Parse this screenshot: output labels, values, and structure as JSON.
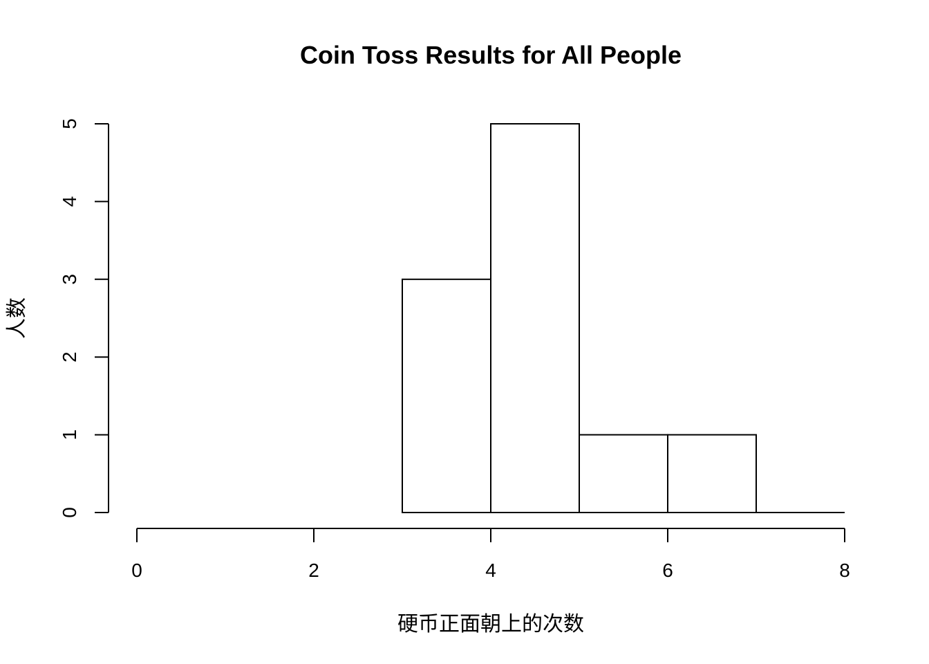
{
  "chart_data": {
    "type": "bar",
    "title": "Coin Toss Results for All People",
    "xlabel": "硬币正面朝上的次数",
    "ylabel": "人数",
    "bins": [
      [
        3,
        4
      ],
      [
        4,
        5
      ],
      [
        5,
        6
      ],
      [
        6,
        7
      ],
      [
        7,
        8
      ]
    ],
    "values": [
      3,
      5,
      1,
      1,
      0
    ],
    "xlim": [
      0,
      8
    ],
    "ylim": [
      0,
      5
    ],
    "xticks": [
      "0",
      "2",
      "4",
      "6",
      "8"
    ],
    "yticks": [
      "0",
      "1",
      "2",
      "3",
      "4",
      "5"
    ],
    "grid": false,
    "colors": {
      "bar_fill": "#ffffff",
      "bar_stroke": "#000000"
    }
  }
}
